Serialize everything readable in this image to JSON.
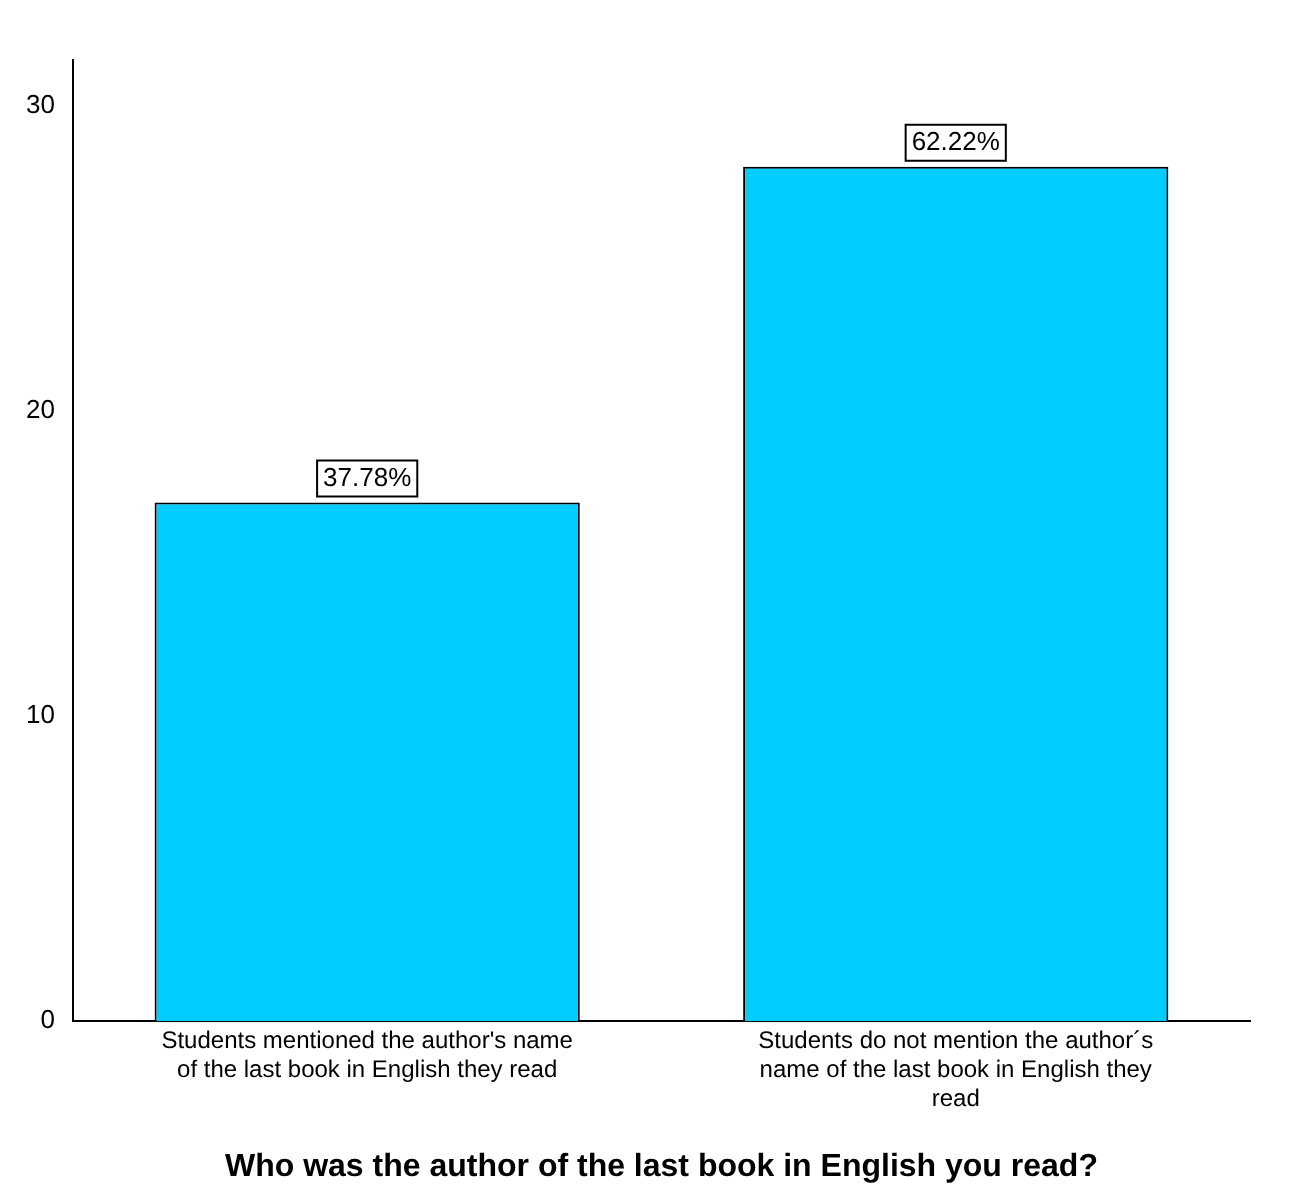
{
  "chart_data": {
    "type": "bar",
    "xlabel": "Who was the author of the last book in English you read?",
    "categories": [
      "Students mentioned the author's name of the last book in English they read",
      "Students do not mention the author´s name of the last book in English they read"
    ],
    "values": [
      17,
      28
    ],
    "annotations": [
      {
        "text": "37.78%",
        "x": "Students mentioned the author's name of the last book in English they read",
        "y": 17
      },
      {
        "text": "62.22%",
        "x": "Students do not mention the author´s name of the last book in English they read",
        "y": 28
      }
    ],
    "color": "#00ccff",
    "ylim": [
      0,
      31.5
    ],
    "yticks": [
      0,
      10,
      20,
      30
    ],
    "grid": false,
    "legend": false
  }
}
